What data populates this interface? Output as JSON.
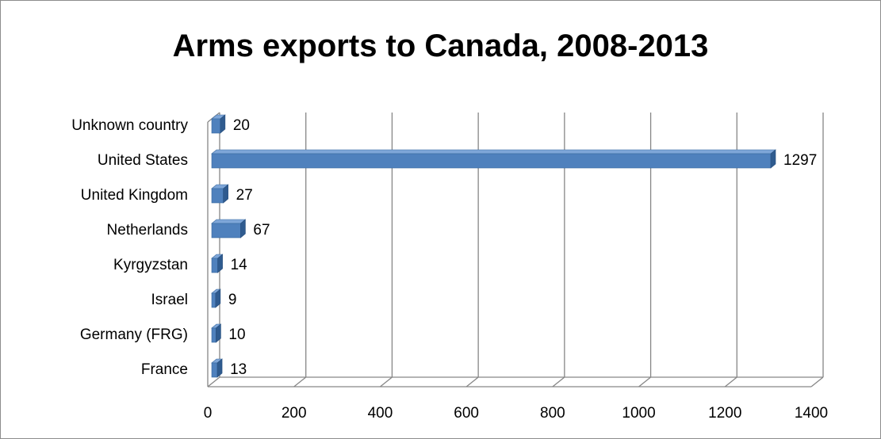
{
  "chart_data": {
    "type": "bar",
    "orientation": "horizontal",
    "style": "3d",
    "title": "Arms exports to Canada, 2008-2013",
    "xlabel": "",
    "ylabel": "",
    "categories": [
      "Unknown country",
      "United States",
      "United Kingdom",
      "Netherlands",
      "Kyrgyzstan",
      "Israel",
      "Germany (FRG)",
      "France"
    ],
    "values": [
      20,
      1297,
      27,
      67,
      14,
      9,
      10,
      13
    ],
    "data_labels": [
      "20",
      "1297",
      "27",
      "67",
      "14",
      "9",
      "10",
      "13"
    ],
    "xlim": [
      0,
      1400
    ],
    "x_ticks": [
      "0",
      "200",
      "400",
      "600",
      "800",
      "1000",
      "1200",
      "1400"
    ],
    "grid": true,
    "legend": "none",
    "bar_color": "#4f81bd"
  }
}
